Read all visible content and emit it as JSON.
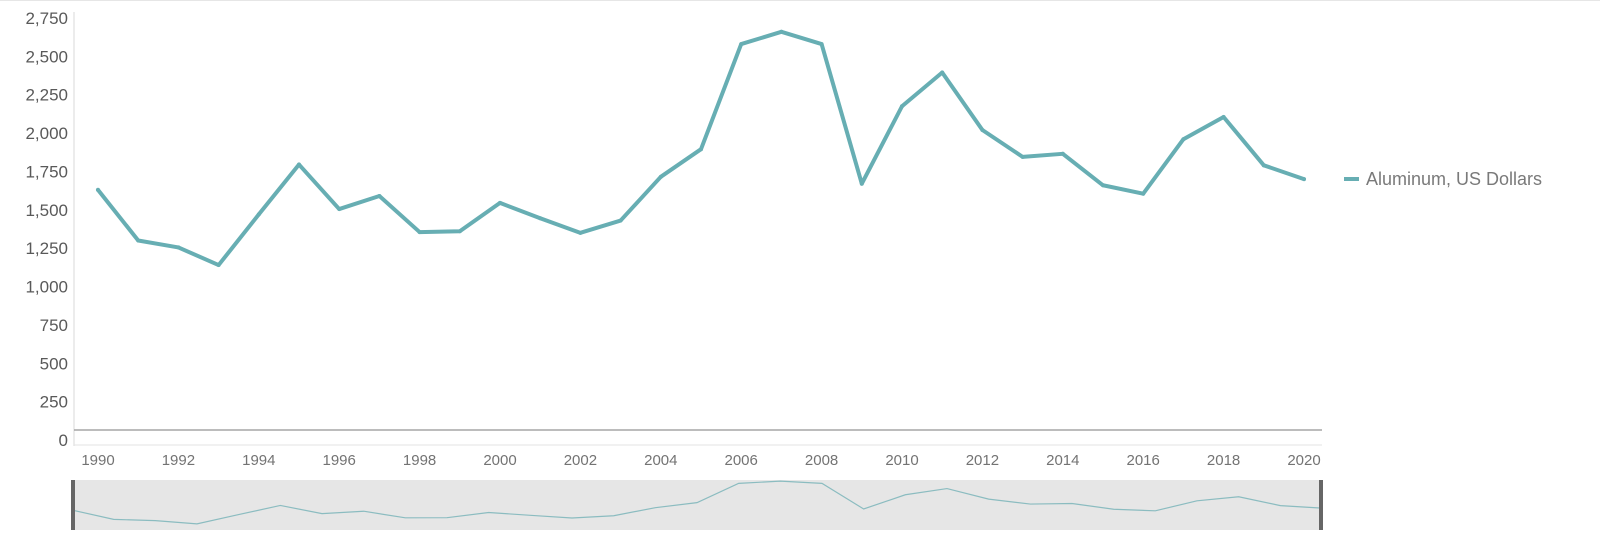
{
  "chart_data": {
    "type": "line",
    "title": "",
    "xlabel": "",
    "ylabel": "",
    "x": [
      1990,
      1991,
      1992,
      1993,
      1994,
      1995,
      1996,
      1997,
      1998,
      1999,
      2000,
      2001,
      2002,
      2003,
      2004,
      2005,
      2006,
      2007,
      2008,
      2009,
      2010,
      2011,
      2012,
      2013,
      2014,
      2015,
      2016,
      2017,
      2018,
      2019,
      2020
    ],
    "x_tick_labels": [
      "1990",
      "1992",
      "1994",
      "1996",
      "1998",
      "2000",
      "2002",
      "2004",
      "2006",
      "2008",
      "2010",
      "2012",
      "2014",
      "2016",
      "2018",
      "2020"
    ],
    "y_tick_labels": [
      "0",
      "250",
      "500",
      "750",
      "1,000",
      "1,250",
      "1,500",
      "1,750",
      "2,000",
      "2,250",
      "2,500",
      "2,750"
    ],
    "ylim": [
      0,
      2750
    ],
    "xlim": [
      1990,
      2020
    ],
    "grid": false,
    "legend_position": "right",
    "navigator": true,
    "series": [
      {
        "name": "Aluminum, US Dollars",
        "color": "#67aeb3",
        "values": [
          1630,
          1300,
          1255,
          1140,
          1470,
          1795,
          1505,
          1590,
          1355,
          1360,
          1545,
          1445,
          1350,
          1430,
          1715,
          1895,
          2580,
          2660,
          2580,
          1670,
          2175,
          2395,
          2020,
          1845,
          1865,
          1660,
          1605,
          1960,
          2105,
          1790,
          1700
        ]
      }
    ]
  }
}
